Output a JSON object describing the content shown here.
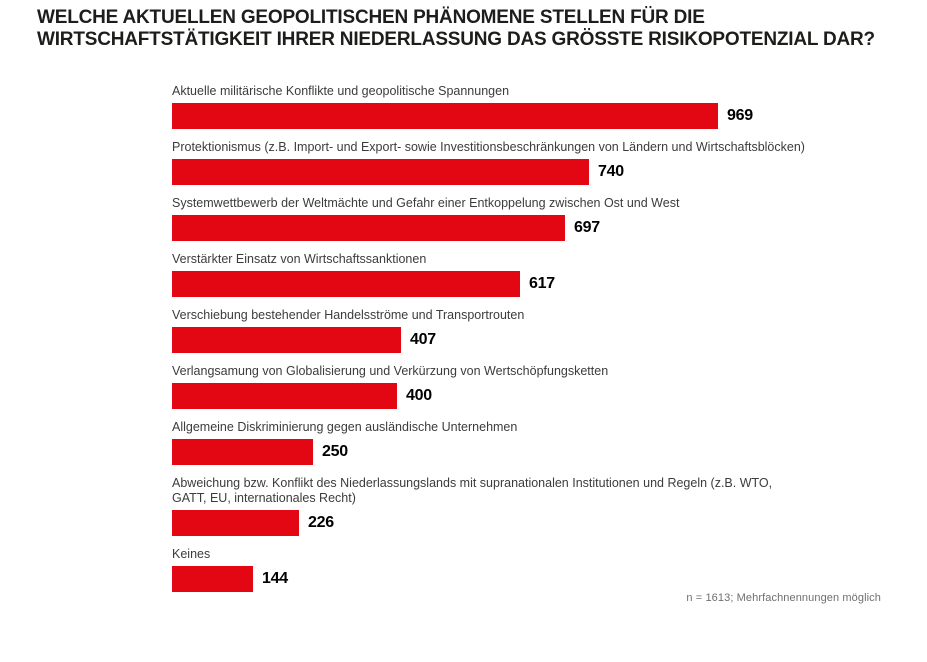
{
  "title_lines": [
    "WELCHE AKTUELLEN GEOPOLITISCHEN PHÄNOMENE STELLEN FÜR DIE",
    "WIRTSCHAFTSTÄTIGKEIT IHRER NIEDERLASSUNG DAS GRÖSSTE RISIKOPOTENZIAL DAR?"
  ],
  "footnote": "n = 1613; Mehrfachnennungen möglich",
  "colors": {
    "bar": "#e30613",
    "title": "#1d1d1b",
    "label": "#3c3c3b",
    "value": "#000000",
    "footnote": "#706f6f"
  },
  "chart_data": {
    "type": "bar",
    "orientation": "horizontal",
    "title": "WELCHE AKTUELLEN GEOPOLITISCHEN PHÄNOMENE STELLEN FÜR DIE WIRTSCHAFTSTÄTIGKEIT IHRER NIEDERLASSUNG DAS GRÖSSTE RISIKOPOTENZIAL DAR?",
    "categories": [
      "Aktuelle militärische Konflikte und geopolitische Spannungen",
      "Protektionismus (z.B. Import- und Export- sowie Investitionsbeschränkungen von Ländern und Wirtschaftsblöcken)",
      "Systemwettbewerb der Weltmächte und Gefahr einer Entkoppelung zwischen Ost und West",
      "Verstärkter Einsatz von Wirtschaftssanktionen",
      "Verschiebung bestehender Handelsströme und Transportrouten",
      "Verlangsamung von Globalisierung und Verkürzung von Wertschöpfungsketten",
      "Allgemeine Diskriminierung gegen ausländische Unternehmen",
      "Abweichung bzw. Konflikt des Niederlassungslands mit supranationalen Institutionen und Regeln (z.B. WTO, GATT, EU, internationales Recht)",
      "Keines"
    ],
    "values": [
      969,
      740,
      697,
      617,
      407,
      400,
      250,
      226,
      144
    ],
    "xmax": 969,
    "value_labels_shown": true,
    "grid": false,
    "legend": false,
    "footnote": "n = 1613; Mehrfachnennungen möglich"
  }
}
